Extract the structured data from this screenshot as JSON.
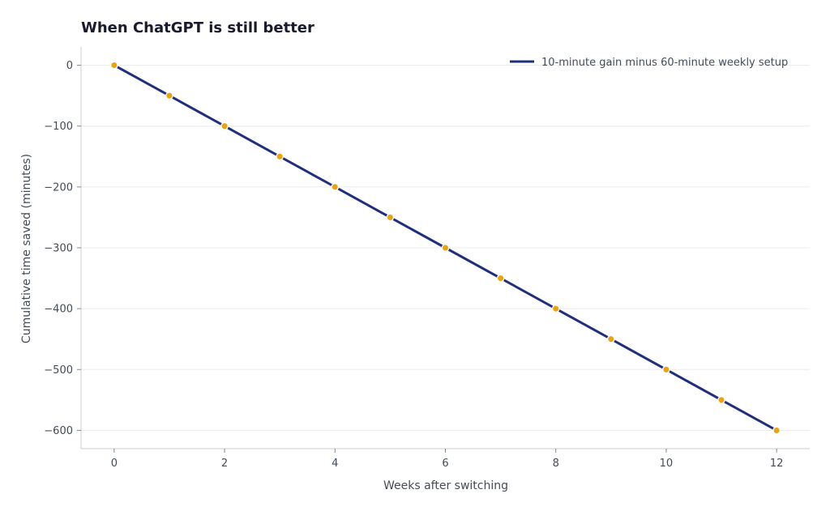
{
  "chart_data": {
    "type": "line",
    "title": "When ChatGPT is still better",
    "xlabel": "Weeks after switching",
    "ylabel": "Cumulative time saved (minutes)",
    "x": [
      0,
      1,
      2,
      3,
      4,
      5,
      6,
      7,
      8,
      9,
      10,
      11,
      12
    ],
    "series": [
      {
        "name": "10-minute gain minus 60-minute weekly setup",
        "values": [
          0,
          -50,
          -100,
          -150,
          -200,
          -250,
          -300,
          -350,
          -400,
          -450,
          -500,
          -550,
          -600
        ],
        "color": "#1f2f7a",
        "marker_color": "#e8a317"
      }
    ],
    "xlim": [
      -0.6,
      12.6
    ],
    "ylim": [
      -630,
      30
    ],
    "xticks": [
      0,
      2,
      4,
      6,
      8,
      10,
      12
    ],
    "yticks": [
      0,
      -100,
      -200,
      -300,
      -400,
      -500,
      -600
    ],
    "xtick_labels": [
      "0",
      "2",
      "4",
      "6",
      "8",
      "10",
      "12"
    ],
    "ytick_labels": [
      "0",
      "−100",
      "−200",
      "−300",
      "−400",
      "−500",
      "−600"
    ],
    "grid": "horizontal",
    "legend_position": "top-right"
  }
}
